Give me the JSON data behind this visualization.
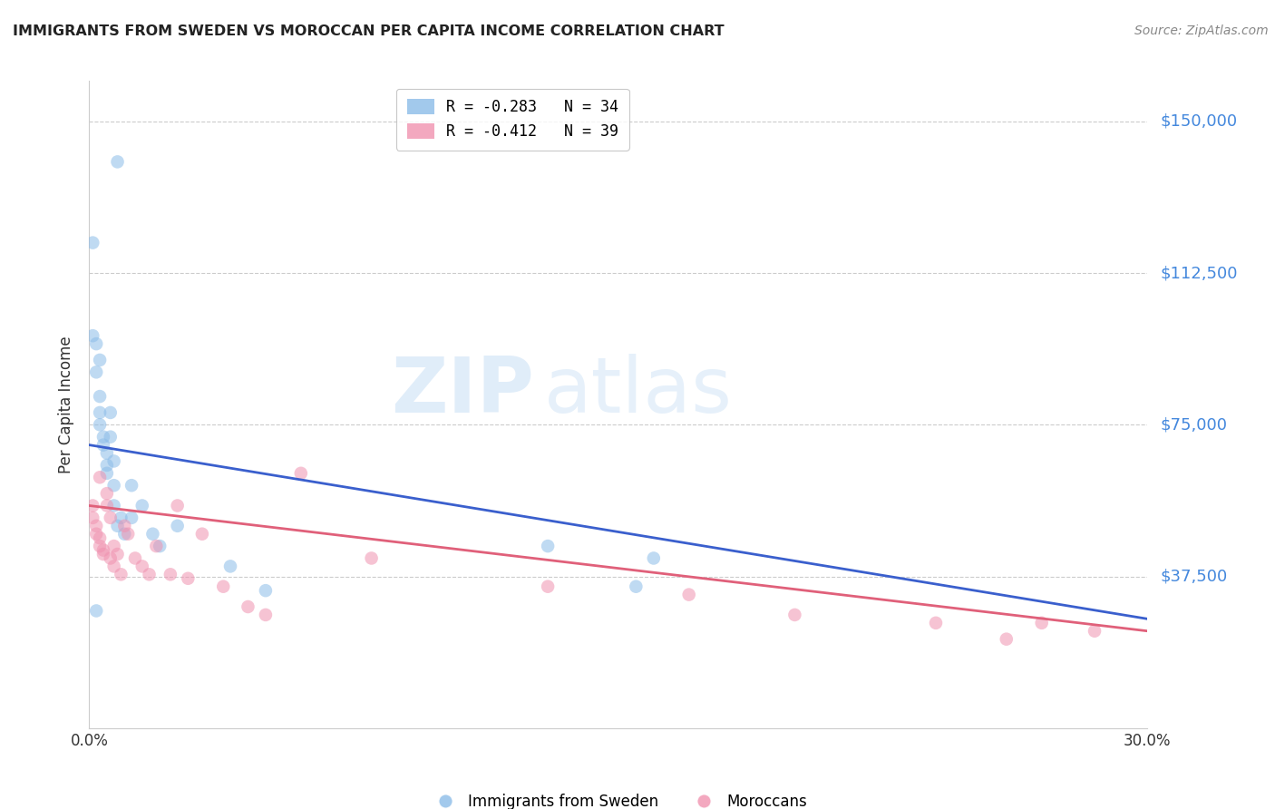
{
  "title": "IMMIGRANTS FROM SWEDEN VS MOROCCAN PER CAPITA INCOME CORRELATION CHART",
  "source": "Source: ZipAtlas.com",
  "ylabel": "Per Capita Income",
  "ytick_labels": [
    "$150,000",
    "$112,500",
    "$75,000",
    "$37,500"
  ],
  "ytick_values": [
    150000,
    112500,
    75000,
    37500
  ],
  "ylim": [
    0,
    160000
  ],
  "xlim": [
    0.0,
    0.3
  ],
  "legend_entries": [
    {
      "label": "R = -0.283   N = 34",
      "color": "#a8c8f5"
    },
    {
      "label": "R = -0.412   N = 39",
      "color": "#f5a8c0"
    }
  ],
  "legend_bottom": [
    "Immigrants from Sweden",
    "Moroccans"
  ],
  "watermark_zip": "ZIP",
  "watermark_atlas": "atlas",
  "blue_scatter_x": [
    0.001,
    0.003,
    0.008,
    0.001,
    0.002,
    0.002,
    0.003,
    0.003,
    0.003,
    0.004,
    0.004,
    0.005,
    0.005,
    0.005,
    0.006,
    0.006,
    0.007,
    0.007,
    0.007,
    0.008,
    0.009,
    0.01,
    0.012,
    0.012,
    0.015,
    0.018,
    0.02,
    0.025,
    0.13,
    0.155,
    0.16,
    0.04,
    0.05,
    0.002
  ],
  "blue_scatter_y": [
    97000,
    91000,
    140000,
    120000,
    95000,
    88000,
    82000,
    78000,
    75000,
    72000,
    70000,
    68000,
    65000,
    63000,
    78000,
    72000,
    66000,
    60000,
    55000,
    50000,
    52000,
    48000,
    60000,
    52000,
    55000,
    48000,
    45000,
    50000,
    45000,
    35000,
    42000,
    40000,
    34000,
    29000
  ],
  "pink_scatter_x": [
    0.001,
    0.001,
    0.002,
    0.002,
    0.003,
    0.003,
    0.003,
    0.004,
    0.004,
    0.005,
    0.005,
    0.006,
    0.006,
    0.007,
    0.007,
    0.008,
    0.009,
    0.01,
    0.011,
    0.013,
    0.015,
    0.017,
    0.019,
    0.023,
    0.025,
    0.028,
    0.032,
    0.038,
    0.045,
    0.05,
    0.13,
    0.17,
    0.2,
    0.24,
    0.26,
    0.27,
    0.285,
    0.06,
    0.08
  ],
  "pink_scatter_y": [
    55000,
    52000,
    50000,
    48000,
    47000,
    45000,
    62000,
    44000,
    43000,
    58000,
    55000,
    42000,
    52000,
    40000,
    45000,
    43000,
    38000,
    50000,
    48000,
    42000,
    40000,
    38000,
    45000,
    38000,
    55000,
    37000,
    48000,
    35000,
    30000,
    28000,
    35000,
    33000,
    28000,
    26000,
    22000,
    26000,
    24000,
    63000,
    42000
  ],
  "blue_line_x": [
    0.0,
    0.3
  ],
  "blue_line_y": [
    70000,
    27000
  ],
  "pink_line_x": [
    0.0,
    0.3
  ],
  "pink_line_y": [
    55000,
    24000
  ],
  "scatter_alpha": 0.55,
  "scatter_size": 110,
  "background_color": "#ffffff",
  "scatter_blue": "#8bbce8",
  "scatter_pink": "#f092b0",
  "line_blue": "#3a5fcd",
  "line_pink": "#e0607a",
  "tick_color": "#4488dd",
  "title_color": "#222222",
  "grid_color": "#cccccc",
  "spine_color": "#cccccc"
}
